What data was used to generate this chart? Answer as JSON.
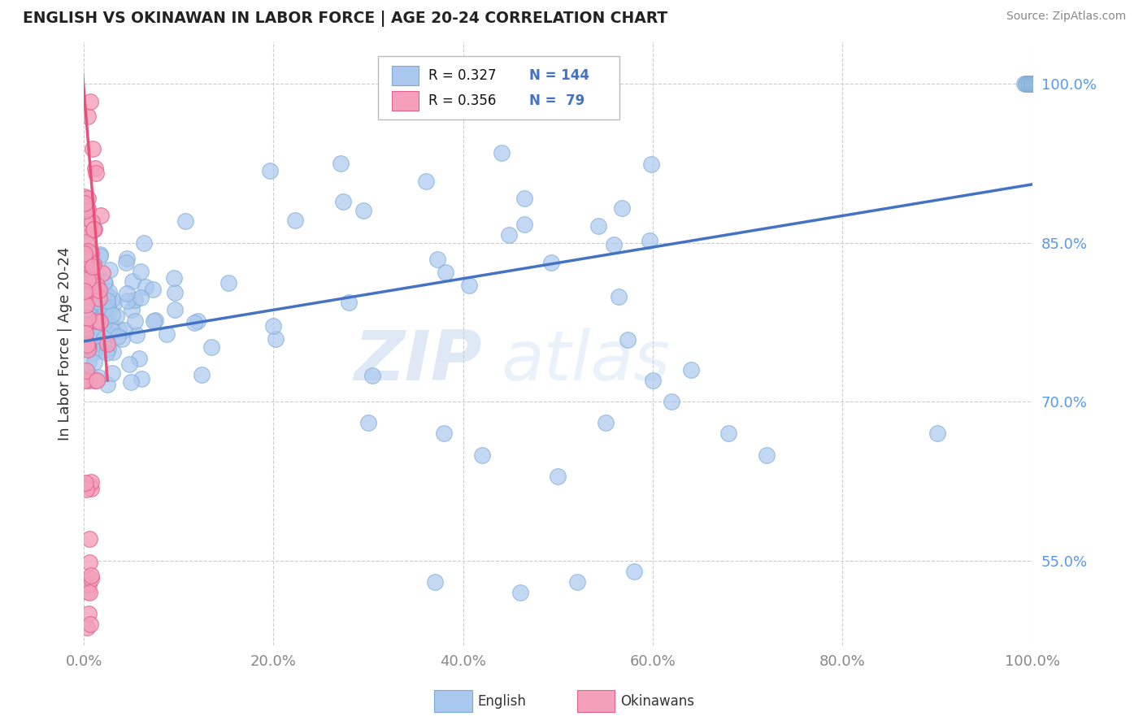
{
  "title": "ENGLISH VS OKINAWAN IN LABOR FORCE | AGE 20-24 CORRELATION CHART",
  "source": "Source: ZipAtlas.com",
  "ylabel": "In Labor Force | Age 20-24",
  "xlim": [
    0.0,
    1.0
  ],
  "ylim": [
    0.47,
    1.04
  ],
  "xticks": [
    0.0,
    0.2,
    0.4,
    0.6,
    0.8,
    1.0
  ],
  "xticklabels": [
    "0.0%",
    "20.0%",
    "40.0%",
    "60.0%",
    "80.0%",
    "100.0%"
  ],
  "yticks": [
    0.55,
    0.7,
    0.85,
    1.0
  ],
  "yticklabels": [
    "55.0%",
    "70.0%",
    "85.0%",
    "100.0%"
  ],
  "english_color": "#aac8ee",
  "okinawan_color": "#f4a0bb",
  "english_edge": "#7aaad4",
  "okinawan_edge": "#e06090",
  "trend_english_color": "#4472c4",
  "trend_okinawan_color": "#e8507a",
  "R_english": 0.327,
  "N_english": 144,
  "R_okinawan": 0.356,
  "N_okinawan": 79,
  "watermark_zip": "ZIP",
  "watermark_atlas": "atlas",
  "grid_color": "#cccccc",
  "background_color": "#ffffff",
  "tick_color": "#5599ee",
  "legend_english_color": "#aac8ee",
  "legend_okinawan_color": "#f4a0bb"
}
